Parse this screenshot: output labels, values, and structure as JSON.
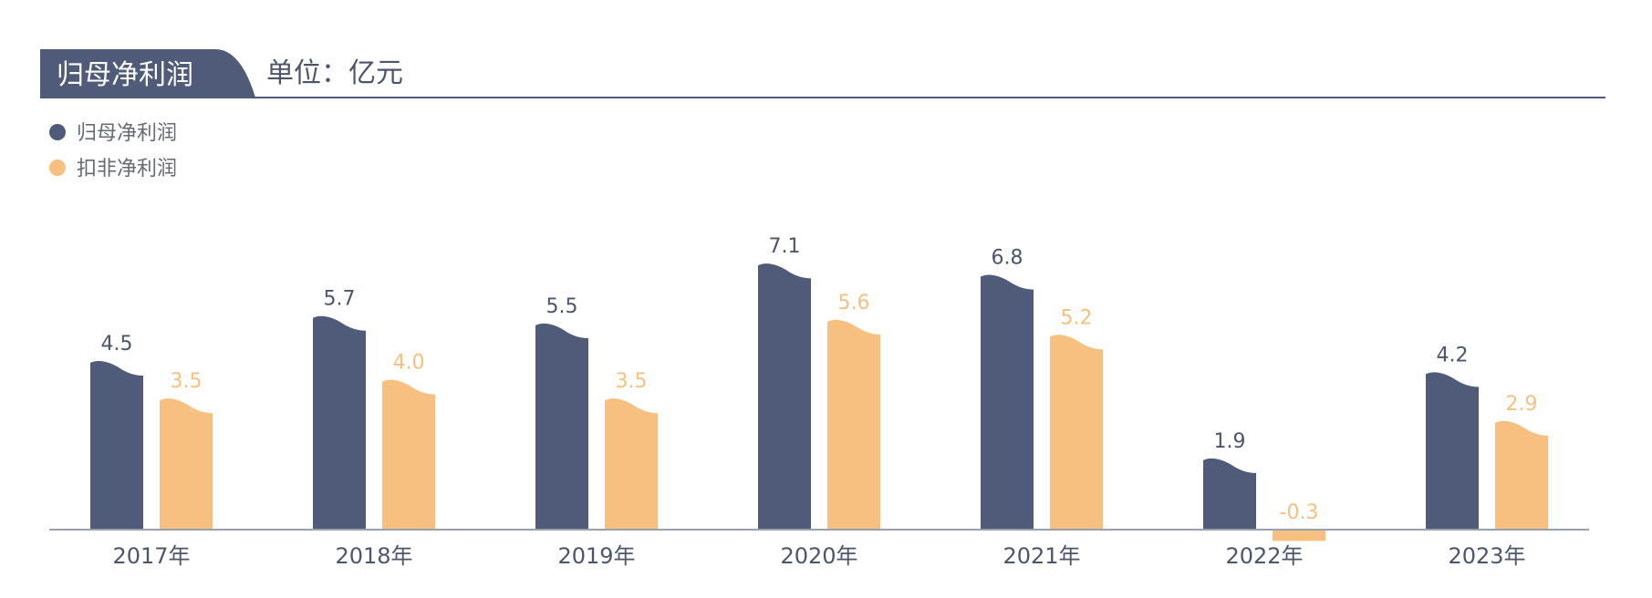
{
  "header": {
    "title": "归母净利润",
    "unit": "单位：亿元"
  },
  "colors": {
    "primary": "#4f5b79",
    "secondary": "#f7c080",
    "axis": "#9aa0ab",
    "text": "#4c556b",
    "legend_text": "#666a73"
  },
  "chart_data": {
    "type": "bar",
    "title": "归母净利润",
    "unit": "单位：亿元",
    "categories": [
      "2017年",
      "2018年",
      "2019年",
      "2020年",
      "2021年",
      "2022年",
      "2023年"
    ],
    "series": [
      {
        "name": "归母净利润",
        "color": "#4f5b79",
        "values": [
          4.5,
          5.7,
          5.5,
          7.1,
          6.8,
          1.9,
          4.2
        ],
        "labels": [
          "4.5",
          "5.7",
          "5.5",
          "7.1",
          "6.8",
          "1.9",
          "4.2"
        ]
      },
      {
        "name": "扣非净利润",
        "color": "#f7c080",
        "values": [
          3.5,
          4.0,
          3.5,
          5.6,
          5.2,
          -0.3,
          2.9
        ],
        "labels": [
          "3.5",
          "4.0",
          "3.5",
          "5.6",
          "5.2",
          "-0.3",
          "2.9"
        ]
      }
    ],
    "legend": [
      "归母净利润",
      "扣非净利润"
    ],
    "legend_position": "top-left",
    "grid": false
  }
}
